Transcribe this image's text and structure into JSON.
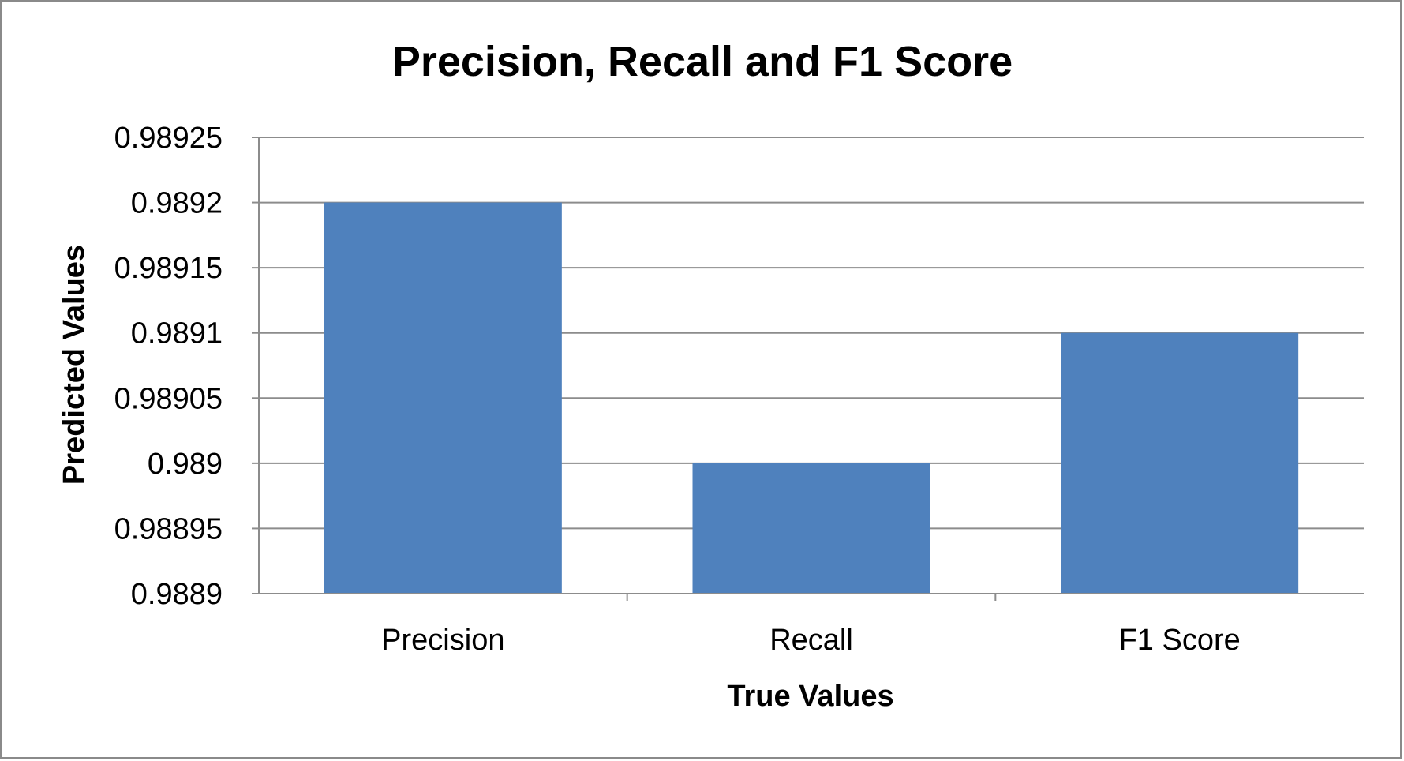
{
  "chart_data": {
    "type": "bar",
    "title": "Precision, Recall and F1 Score",
    "xlabel": "True Values",
    "ylabel": "Predicted Values",
    "categories": [
      "Precision",
      "Recall",
      "F1 Score"
    ],
    "values": [
      0.9892,
      0.989,
      0.9891
    ],
    "ylim": [
      0.9889,
      0.98925
    ],
    "yticks": [
      0.9889,
      0.98895,
      0.989,
      0.98905,
      0.9891,
      0.98915,
      0.9892,
      0.98925
    ],
    "ytick_labels": [
      "0.9889",
      "0.98895",
      "0.989",
      "0.98905",
      "0.9891",
      "0.98915",
      "0.9892",
      "0.98925"
    ],
    "grid": true,
    "legend": "none",
    "colors": {
      "bar": "#4f81bd",
      "grid": "#8c8c8c",
      "border": "#8a8a8a"
    }
  }
}
